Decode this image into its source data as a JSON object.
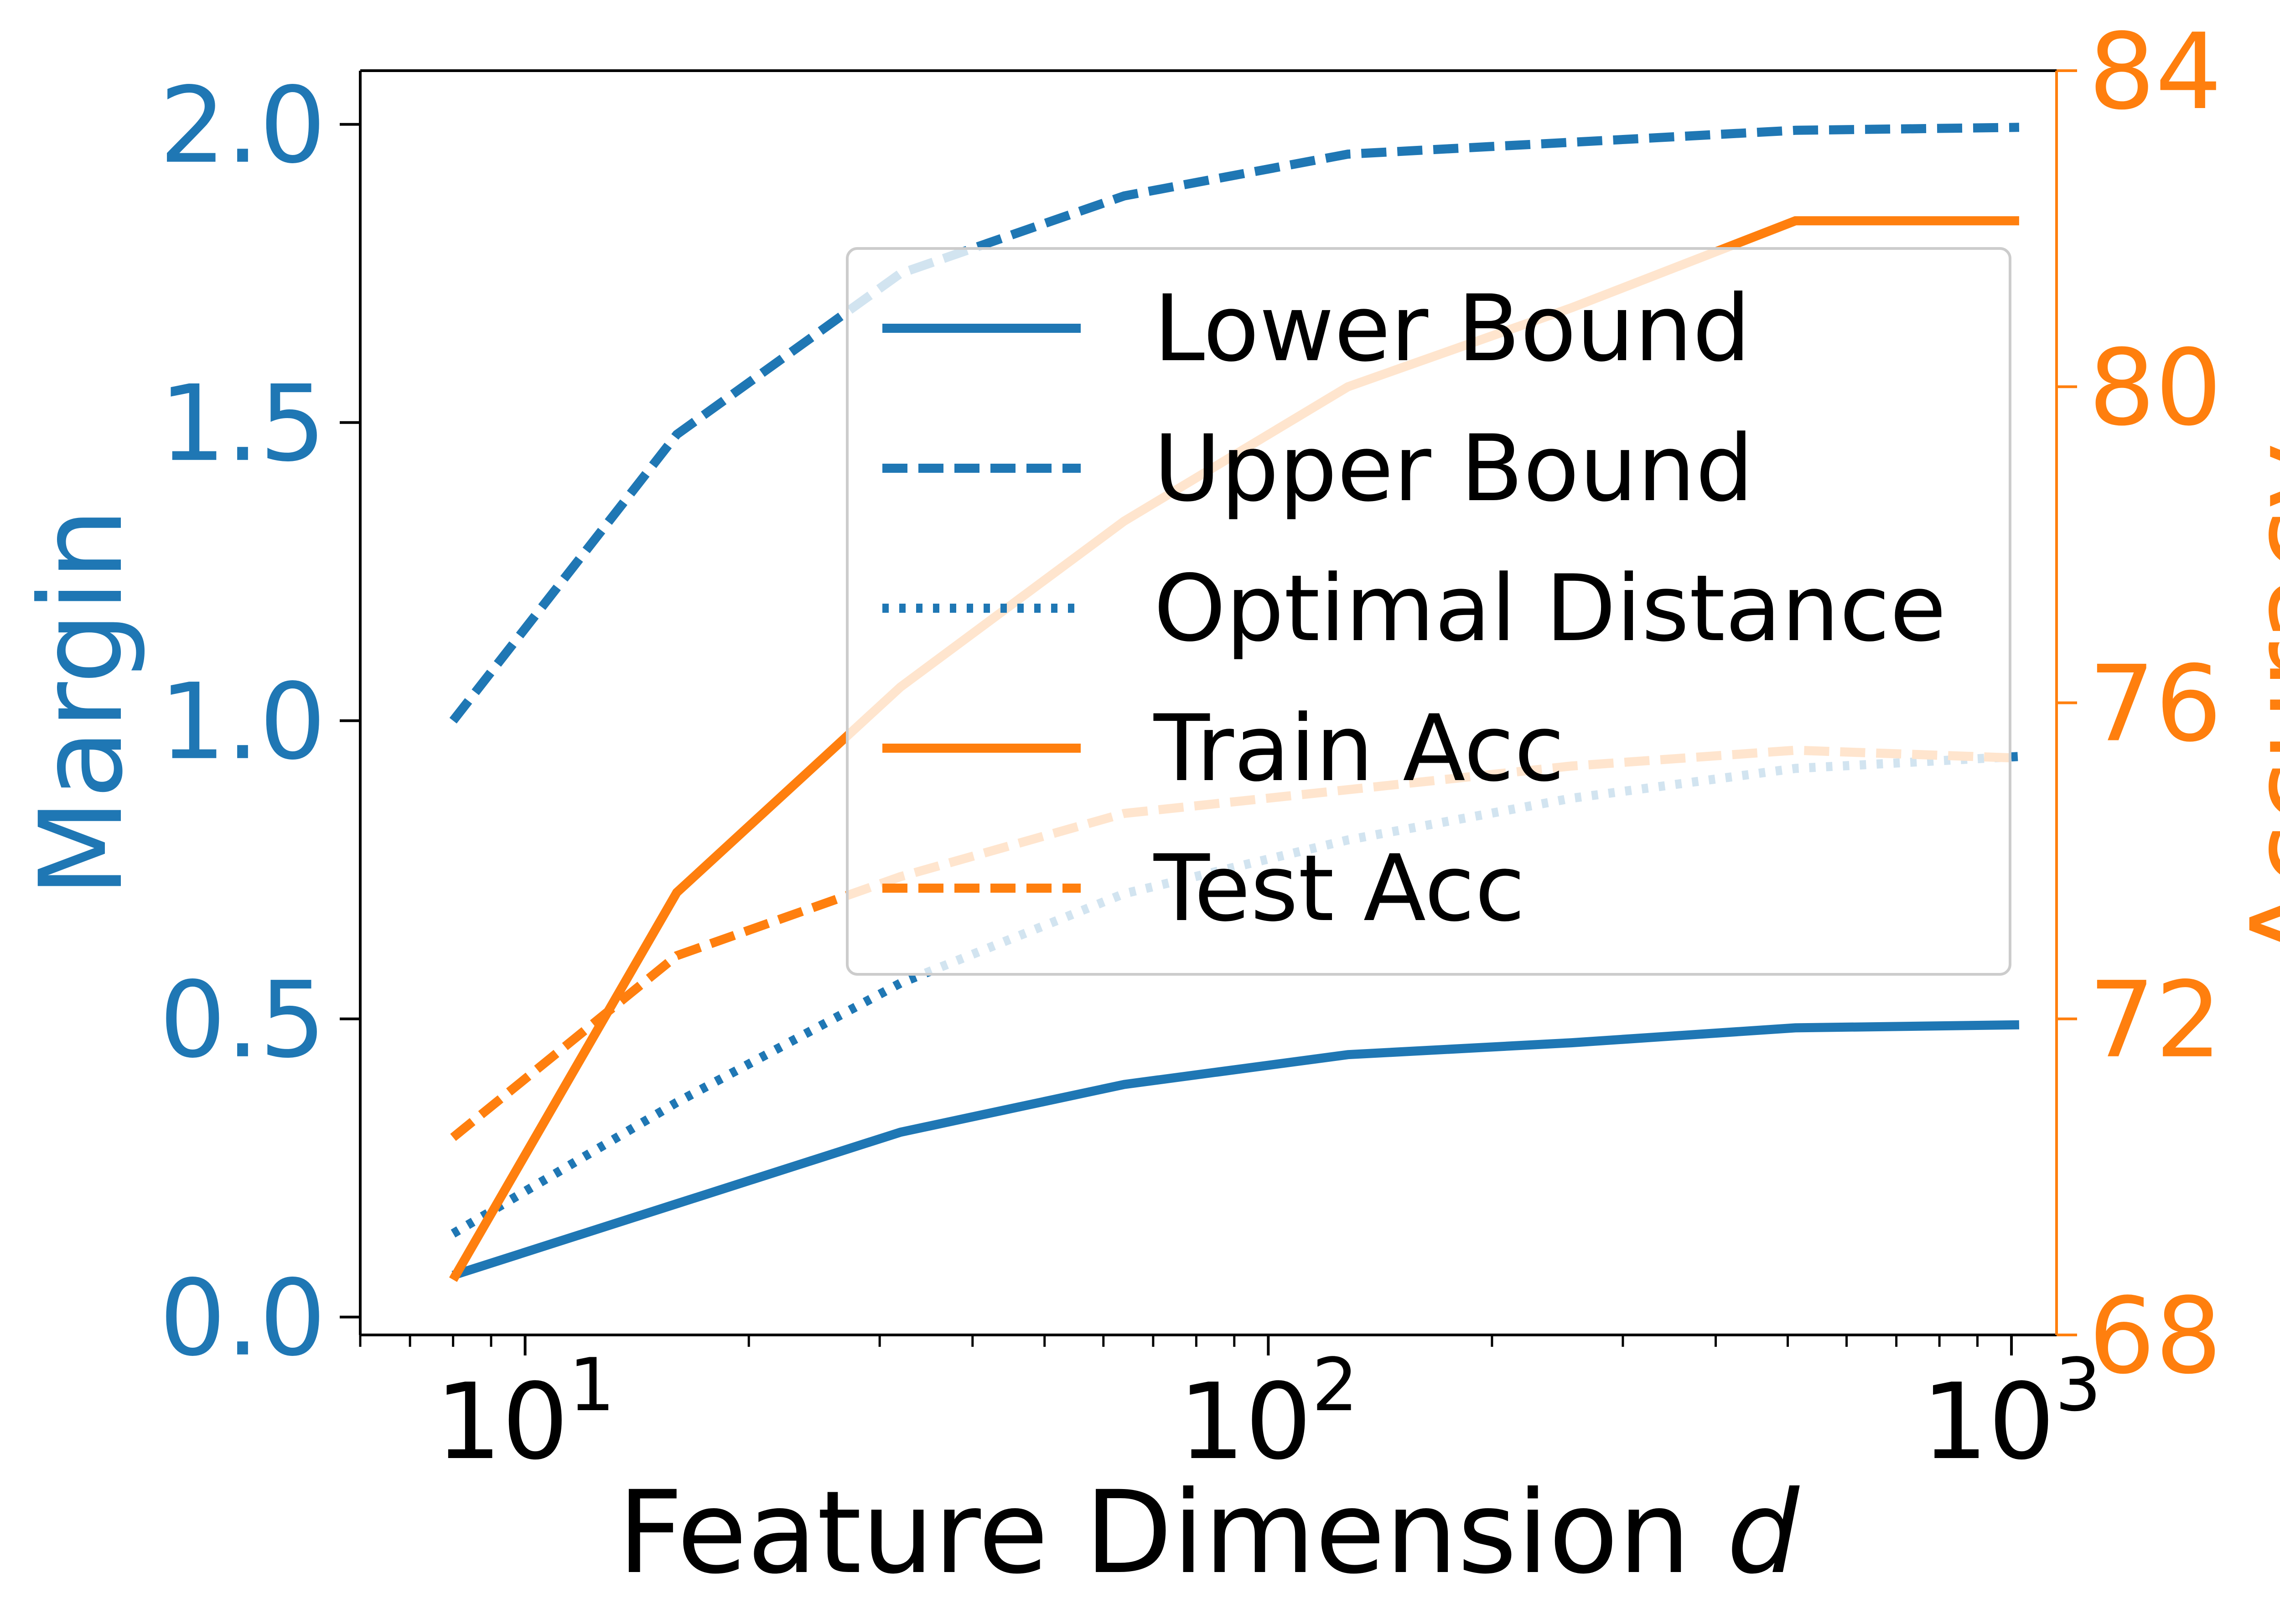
{
  "colors": {
    "margin_axis": "#1f77b4",
    "accuracy_axis": "#ff7f0e",
    "text": "#000000",
    "legend_border": "#cccccc",
    "background": "#ffffff"
  },
  "chart_data": {
    "type": "line",
    "xlabel": "Feature Dimension",
    "xlabel_var": "d",
    "ylabel_left": "Margin",
    "ylabel_right": "Accuracy",
    "xscale": "log",
    "xlim": [
      6,
      1150
    ],
    "ylim_left": [
      -0.03,
      2.09
    ],
    "ylim_right": [
      68,
      84
    ],
    "x_ticks": [
      {
        "value": 10,
        "base": "10",
        "exp": "1"
      },
      {
        "value": 100,
        "base": "10",
        "exp": "2"
      },
      {
        "value": 1000,
        "base": "10",
        "exp": "3"
      }
    ],
    "y_ticks_left": [
      0.0,
      0.5,
      1.0,
      1.5,
      2.0
    ],
    "y_tick_labels_left": [
      "0.0",
      "0.5",
      "1.0",
      "1.5",
      "2.0"
    ],
    "y_ticks_right": [
      68,
      72,
      76,
      80,
      84
    ],
    "y_tick_labels_right": [
      "68",
      "72",
      "76",
      "80",
      "84"
    ],
    "x": [
      8,
      16,
      32,
      64,
      128,
      256,
      512,
      1024
    ],
    "series": [
      {
        "name": "Lower Bound",
        "axis": "left",
        "color": "#1f77b4",
        "style": "solid",
        "values": [
          0.07,
          0.19,
          0.31,
          0.39,
          0.44,
          0.46,
          0.485,
          0.49
        ]
      },
      {
        "name": "Upper Bound",
        "axis": "left",
        "color": "#1f77b4",
        "style": "dashed",
        "values": [
          1.0,
          1.48,
          1.75,
          1.88,
          1.95,
          1.97,
          1.99,
          1.995
        ]
      },
      {
        "name": "Optimal Distance",
        "axis": "left",
        "color": "#1f77b4",
        "style": "dotted",
        "values": [
          0.14,
          0.36,
          0.56,
          0.71,
          0.8,
          0.87,
          0.92,
          0.94
        ]
      },
      {
        "name": "Train Acc",
        "axis": "right",
        "color": "#ff7f0e",
        "style": "solid",
        "values": [
          68.7,
          73.6,
          76.2,
          78.3,
          80.0,
          81.0,
          82.1,
          82.1
        ]
      },
      {
        "name": "Test Acc",
        "axis": "right",
        "color": "#ff7f0e",
        "style": "dashed",
        "values": [
          70.5,
          72.8,
          73.8,
          74.6,
          74.9,
          75.2,
          75.4,
          75.3
        ]
      }
    ],
    "legend": {
      "placement": "upper right",
      "entries": [
        "Lower Bound",
        "Upper Bound",
        "Optimal Distance",
        "Train Acc",
        "Test Acc"
      ]
    }
  }
}
